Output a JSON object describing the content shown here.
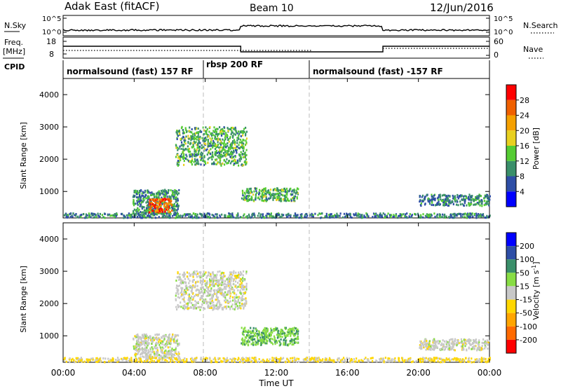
{
  "header": {
    "radar": "Adak East (fitACF)",
    "beam": "Beam 10",
    "date": "12/Jun/2016"
  },
  "noise": {
    "left_label": "N.Sky",
    "right_label": "N.Search",
    "left_ticks": [
      "10^5",
      "10^0"
    ],
    "right_ticks": [
      "10^5",
      "10^0"
    ]
  },
  "freq": {
    "left_label_line1": "Freq.",
    "left_label_line2": "[MHz]",
    "right_label": "Nave",
    "left_ticks": [
      "18",
      "8"
    ],
    "right_ticks": [
      "60",
      "0"
    ]
  },
  "cpid": {
    "label": "CPID",
    "segments": [
      {
        "name": "normalsound (fast) 157 RF",
        "start": "00:00",
        "end": "08:00"
      },
      {
        "name": "rbsp 200 RF",
        "start": "08:00",
        "end": "14:00"
      },
      {
        "name": "normalsound (fast) -157 RF",
        "start": "14:00",
        "end": "24:00"
      }
    ]
  },
  "x_ticks": [
    "00:00",
    "04:00",
    "08:00",
    "12:00",
    "16:00",
    "20:00",
    "00:00"
  ],
  "xlabel": "Time UT",
  "colors": {
    "power": [
      "#0000ff",
      "#2e4ea6",
      "#3a8f6a",
      "#55cc33",
      "#e8d020",
      "#f5a000",
      "#f06000",
      "#ff0000"
    ],
    "velocity": [
      "#ff0000",
      "#ff6a00",
      "#ffa500",
      "#ffd700",
      "#c8c8c8",
      "#88dd44",
      "#3a8f6a",
      "#2e4ea6",
      "#0000ff"
    ]
  },
  "chart_data": [
    {
      "type": "heatmap",
      "title": "",
      "ylabel": "Slant Range [km]",
      "xlabel": "",
      "xlim": [
        0,
        24
      ],
      "ylim": [
        180,
        4500
      ],
      "y_ticks": [
        "1000",
        "2000",
        "3000",
        "4000"
      ],
      "colorbar": {
        "label": "Power [dB]",
        "ticks": [
          "4",
          "8",
          "12",
          "16",
          "20",
          "24",
          "28"
        ],
        "range": [
          0,
          32
        ]
      },
      "regions": [
        {
          "t0": 3.9,
          "t1": 6.5,
          "r0": 280,
          "r1": 1050,
          "v": 10
        },
        {
          "t0": 4.8,
          "t1": 6.1,
          "r0": 330,
          "r1": 780,
          "v": 26
        },
        {
          "t0": 6.3,
          "t1": 10.3,
          "r0": 1800,
          "r1": 3000,
          "v": 12
        },
        {
          "t0": 10.0,
          "t1": 13.2,
          "r0": 700,
          "r1": 1100,
          "v": 12
        },
        {
          "t0": 20.0,
          "t1": 24.0,
          "r0": 550,
          "r1": 900,
          "v": 9
        },
        {
          "t0": 0.0,
          "t1": 24.0,
          "r0": 180,
          "r1": 320,
          "v": 9
        }
      ]
    },
    {
      "type": "heatmap",
      "title": "",
      "ylabel": "Slant Range [km]",
      "xlabel": "Time UT",
      "xlim": [
        0,
        24
      ],
      "ylim": [
        180,
        4500
      ],
      "y_ticks": [
        "1000",
        "2000",
        "3000",
        "4000"
      ],
      "colorbar": {
        "label": "Velocity [m s^-1]",
        "ticks": [
          "200",
          "100",
          "50",
          "15",
          "-15",
          "-50",
          "-100",
          "-200"
        ]
      },
      "regions": [
        {
          "t0": 3.9,
          "t1": 6.5,
          "r0": 280,
          "r1": 1050,
          "v": 0
        },
        {
          "t0": 6.3,
          "t1": 10.3,
          "r0": 1800,
          "r1": 3000,
          "v": 0
        },
        {
          "t0": 10.0,
          "t1": 13.2,
          "r0": 700,
          "r1": 1250,
          "v": 40
        },
        {
          "t0": 20.0,
          "t1": 24.0,
          "r0": 550,
          "r1": 900,
          "v": 0
        },
        {
          "t0": 0.0,
          "t1": 24.0,
          "r0": 180,
          "r1": 320,
          "v": -20
        }
      ]
    }
  ]
}
